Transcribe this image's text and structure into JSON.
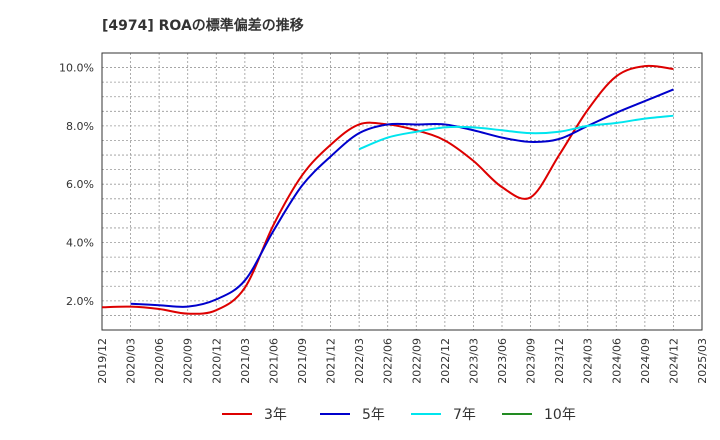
{
  "chart_data": {
    "type": "line",
    "title": "[4974]  ROAの標準偏差の推移",
    "xlabel": "",
    "ylabel": "",
    "ylim": [
      1.0,
      10.5
    ],
    "yticks": [
      2.0,
      4.0,
      6.0,
      8.0,
      10.0
    ],
    "ytick_labels": [
      "2.0%",
      "4.0%",
      "6.0%",
      "8.0%",
      "10.0%"
    ],
    "xticks": [
      "2019/12",
      "2020/03",
      "2020/06",
      "2020/09",
      "2020/12",
      "2021/03",
      "2021/06",
      "2021/09",
      "2021/12",
      "2022/03",
      "2022/06",
      "2022/09",
      "2022/12",
      "2023/03",
      "2023/06",
      "2023/09",
      "2023/12",
      "2024/03",
      "2024/06",
      "2024/09",
      "2024/12",
      "2025/03"
    ],
    "grid": true,
    "legend_position": "bottom",
    "series": [
      {
        "name": "3年",
        "color": "#dd0000",
        "start": "2019/12",
        "values": [
          1.78,
          1.8,
          1.72,
          1.56,
          1.68,
          2.45,
          4.6,
          6.3,
          7.35,
          8.05,
          8.05,
          7.85,
          7.5,
          6.8,
          5.9,
          5.55,
          7.0,
          8.55,
          9.7,
          10.05,
          9.95
        ]
      },
      {
        "name": "5年",
        "color": "#0000cc",
        "start": "2020/03",
        "values": [
          1.9,
          1.85,
          1.8,
          2.05,
          2.7,
          4.4,
          5.95,
          6.95,
          7.75,
          8.05,
          8.05,
          8.05,
          7.85,
          7.6,
          7.45,
          7.55,
          8.0,
          8.45,
          8.85,
          9.25
        ]
      },
      {
        "name": "7年",
        "color": "#00e5ee",
        "start": "2022/03",
        "values": [
          7.2,
          7.6,
          7.8,
          7.95,
          7.95,
          7.85,
          7.75,
          7.8,
          8.0,
          8.1,
          8.25,
          8.35
        ]
      },
      {
        "name": "10年",
        "color": "#228b22",
        "start": "2019/12",
        "values": []
      }
    ]
  }
}
